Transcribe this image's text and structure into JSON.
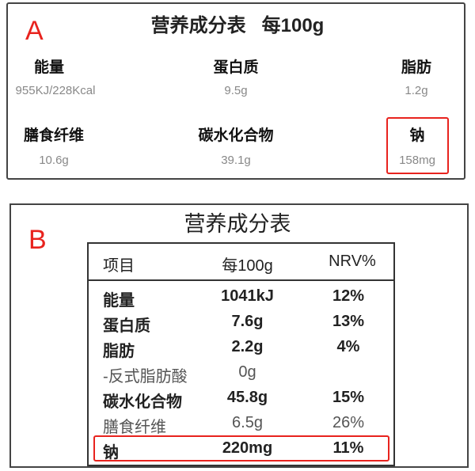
{
  "panel_a": {
    "tag": "A",
    "title": "营养成分表   每100g",
    "items": [
      {
        "label": "能量",
        "value": "955KJ/228Kcal"
      },
      {
        "label": "蛋白质",
        "value": "9.5g"
      },
      {
        "label": "脂肪",
        "value": "1.2g"
      },
      {
        "label": "膳食纤维",
        "value": "10.6g"
      },
      {
        "label": "碳水化合物",
        "value": "39.1g"
      },
      {
        "label": "钠",
        "value": "158mg"
      }
    ],
    "highlight_color": "#e8231e"
  },
  "panel_b": {
    "tag": "B",
    "title": "营养成分表",
    "headers": [
      "项目",
      "每100g",
      "NRV%"
    ],
    "rows": [
      [
        "能量",
        "1041kJ",
        "12%"
      ],
      [
        "蛋白质",
        "7.6g",
        "13%"
      ],
      [
        "脂肪",
        "2.2g",
        "4%"
      ],
      [
        "-反式脂肪酸",
        "0g",
        ""
      ],
      [
        "碳水化合物",
        "45.8g",
        "15%"
      ],
      [
        "膳食纤维",
        "6.5g",
        "26%"
      ],
      [
        "钠",
        "220mg",
        "11%"
      ]
    ],
    "highlight_color": "#e8231e"
  }
}
